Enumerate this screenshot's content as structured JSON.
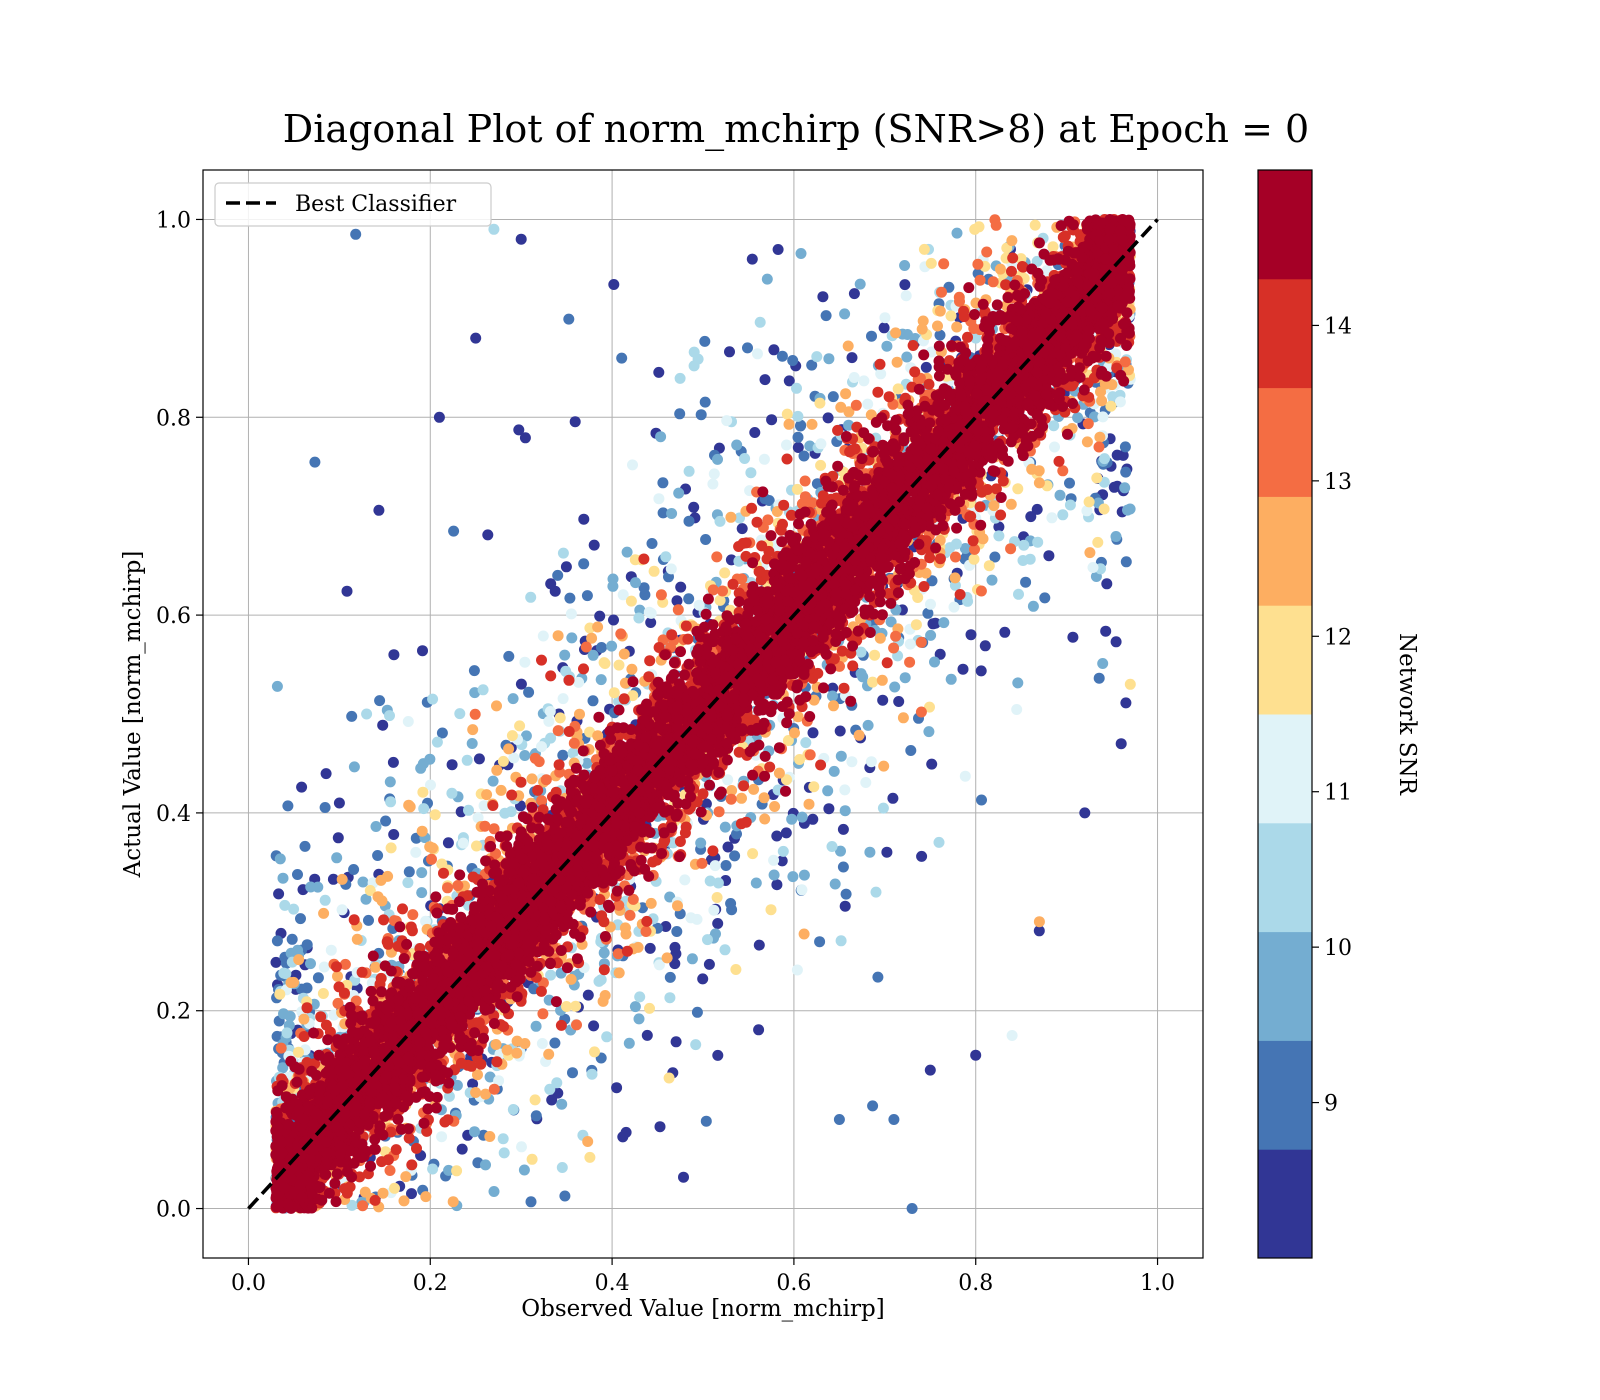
{
  "chart_data": {
    "type": "scatter",
    "title": "Diagonal Plot of norm_mchirp (SNR>8) at Epoch = 0",
    "xlabel": "Observed Value [norm_mchirp]",
    "ylabel": "Actual Value [norm_mchirp]",
    "xlim": [
      -0.05,
      1.05
    ],
    "ylim": [
      -0.05,
      1.05
    ],
    "xticks": [
      "0.0",
      "0.2",
      "0.4",
      "0.6",
      "0.8",
      "1.0"
    ],
    "yticks": [
      "0.0",
      "0.2",
      "0.4",
      "0.6",
      "0.8",
      "1.0"
    ],
    "grid": true,
    "legend": {
      "placement": "upper-left",
      "entries": [
        {
          "label": "Best Classifier",
          "style": "black dashed line"
        }
      ]
    },
    "reference_line": {
      "x": [
        0,
        1
      ],
      "y": [
        0,
        1
      ]
    },
    "colorbar": {
      "label": "Network SNR",
      "min": 8,
      "max": 15,
      "ticks": [
        "9",
        "10",
        "11",
        "12",
        "13",
        "14"
      ],
      "bands": [
        {
          "from": 8.0,
          "to": 8.7,
          "color": "#313695"
        },
        {
          "from": 8.7,
          "to": 9.4,
          "color": "#4575b4"
        },
        {
          "from": 9.4,
          "to": 10.1,
          "color": "#74add1"
        },
        {
          "from": 10.1,
          "to": 10.8,
          "color": "#abd9e9"
        },
        {
          "from": 10.8,
          "to": 11.5,
          "color": "#e0f3f8"
        },
        {
          "from": 11.5,
          "to": 12.2,
          "color": "#fee090"
        },
        {
          "from": 12.2,
          "to": 12.9,
          "color": "#fdae61"
        },
        {
          "from": 12.9,
          "to": 13.6,
          "color": "#f46d43"
        },
        {
          "from": 13.6,
          "to": 14.3,
          "color": "#d73027"
        },
        {
          "from": 14.3,
          "to": 15.0,
          "color": "#a50026"
        }
      ]
    },
    "series": [
      {
        "points_description": "dense cloud along diagonal; high-SNR points near y=x, low-SNR points scattered further away; observed values range ~0.03-0.97, actual values 0-1",
        "sample_points": [
          {
            "x": 0.118,
            "y": 0.985,
            "snr": 9.3
          },
          {
            "x": 0.27,
            "y": 0.99,
            "snr": 10.5
          },
          {
            "x": 0.3,
            "y": 0.98,
            "snr": 8.3
          },
          {
            "x": 0.25,
            "y": 0.88,
            "snr": 8.4
          },
          {
            "x": 0.21,
            "y": 0.8,
            "snr": 8.5
          },
          {
            "x": 0.16,
            "y": 0.56,
            "snr": 8.4
          },
          {
            "x": 0.1,
            "y": 0.41,
            "snr": 8.3
          },
          {
            "x": 0.13,
            "y": 0.5,
            "snr": 10.5
          },
          {
            "x": 0.73,
            "y": 0.0,
            "snr": 9.0
          },
          {
            "x": 0.8,
            "y": 0.155,
            "snr": 8.3
          },
          {
            "x": 0.84,
            "y": 0.175,
            "snr": 11.0
          },
          {
            "x": 0.87,
            "y": 0.29,
            "snr": 12.5
          },
          {
            "x": 0.92,
            "y": 0.4,
            "snr": 8.5
          },
          {
            "x": 0.96,
            "y": 0.47,
            "snr": 8.4
          },
          {
            "x": 0.97,
            "y": 0.53,
            "snr": 11.8
          },
          {
            "x": 0.75,
            "y": 0.14,
            "snr": 8.5
          },
          {
            "x": 0.71,
            "y": 0.09,
            "snr": 9.2
          },
          {
            "x": 0.65,
            "y": 0.09,
            "snr": 9.3
          }
        ]
      }
    ]
  }
}
